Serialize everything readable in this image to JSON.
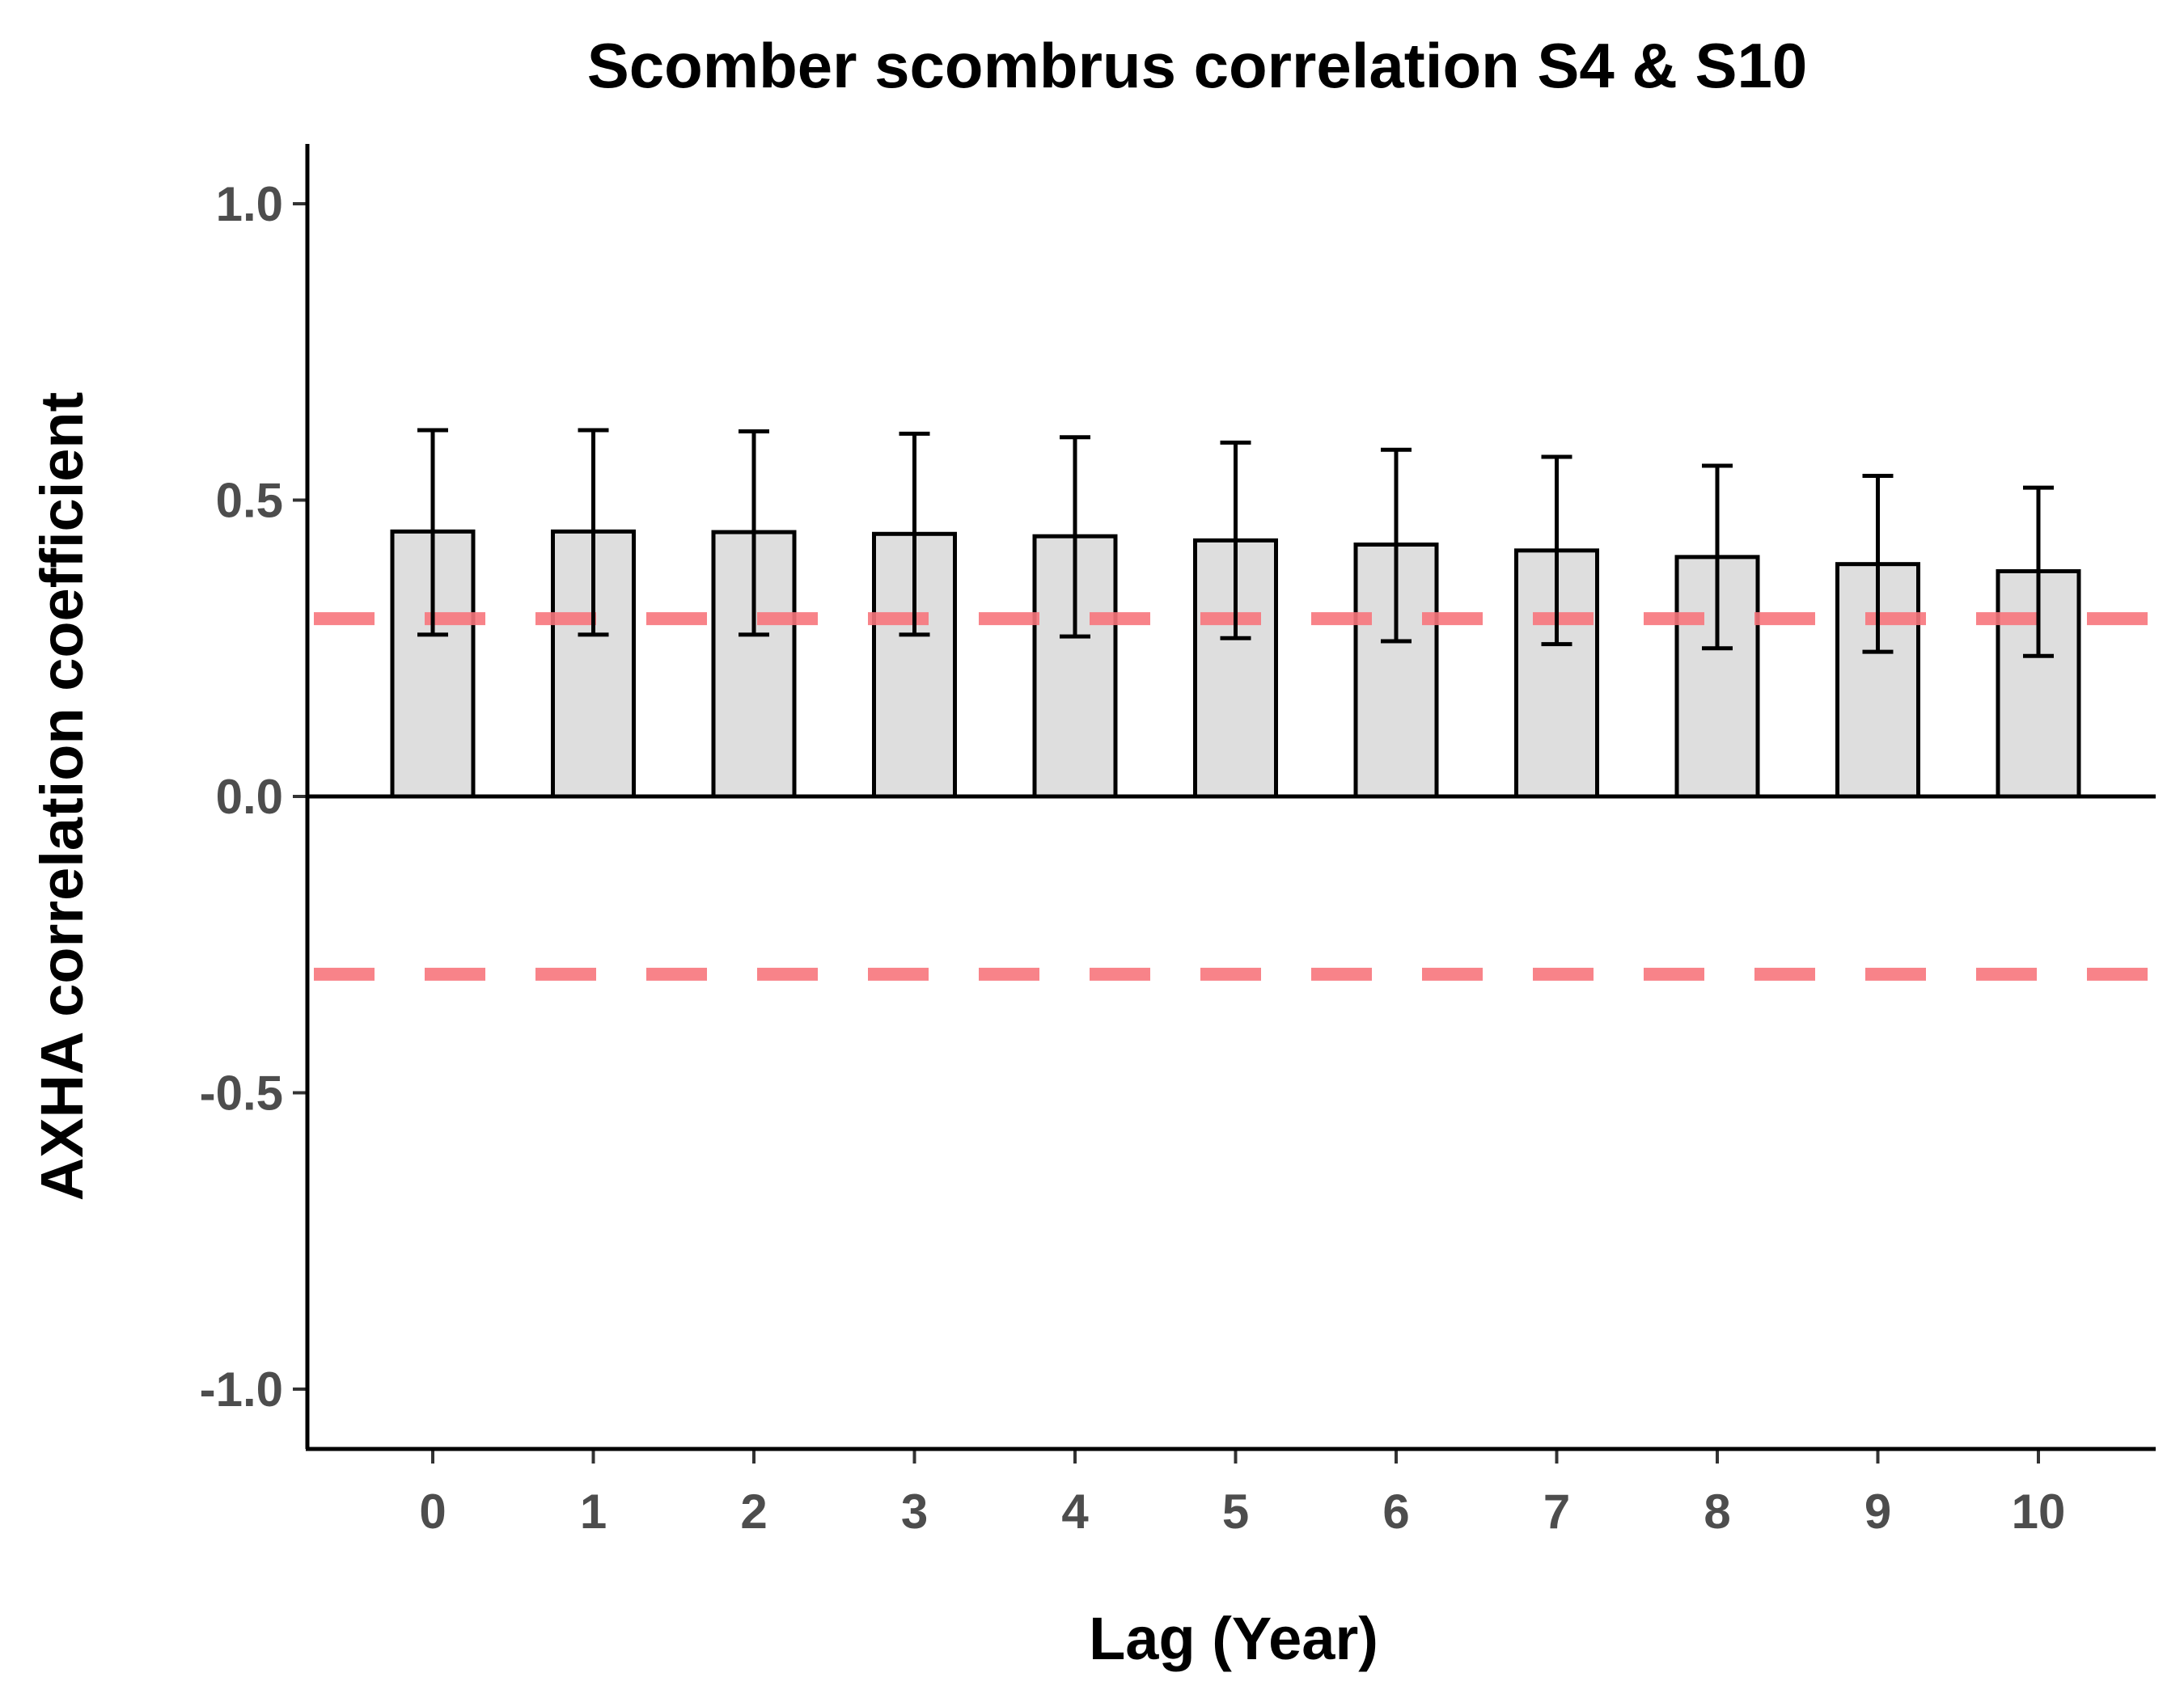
{
  "chart_data": {
    "type": "bar",
    "title": "Scomber scombrus correlation S4 & S10",
    "xlabel": "Lag (Year)",
    "ylabel": "AXHA correlation coefficient",
    "categories": [
      "0",
      "1",
      "2",
      "3",
      "4",
      "5",
      "6",
      "7",
      "8",
      "9",
      "10"
    ],
    "values": [
      0.447,
      0.447,
      0.446,
      0.443,
      0.439,
      0.432,
      0.425,
      0.415,
      0.404,
      0.392,
      0.38
    ],
    "error_lower": [
      0.273,
      0.273,
      0.273,
      0.273,
      0.27,
      0.267,
      0.262,
      0.257,
      0.25,
      0.244,
      0.237
    ],
    "error_upper": [
      0.618,
      0.618,
      0.616,
      0.612,
      0.606,
      0.597,
      0.585,
      0.573,
      0.558,
      0.541,
      0.521
    ],
    "ylim": [
      -1.1,
      1.1
    ],
    "yticks": [
      "-1.0",
      "-0.5",
      "0.0",
      "0.5",
      "1.0"
    ],
    "ytick_values": [
      -1.0,
      -0.5,
      0.0,
      0.5,
      1.0
    ],
    "reference_lines": [
      0.3,
      -0.3
    ],
    "reference_line_style": "dashed",
    "grid": false,
    "legend": "none",
    "colors": {
      "bar_fill": "#dedede",
      "bar_stroke": "#000000",
      "reference_line": "#f8767d",
      "tick_label": "#4d4d4d",
      "text": "#000000"
    }
  }
}
